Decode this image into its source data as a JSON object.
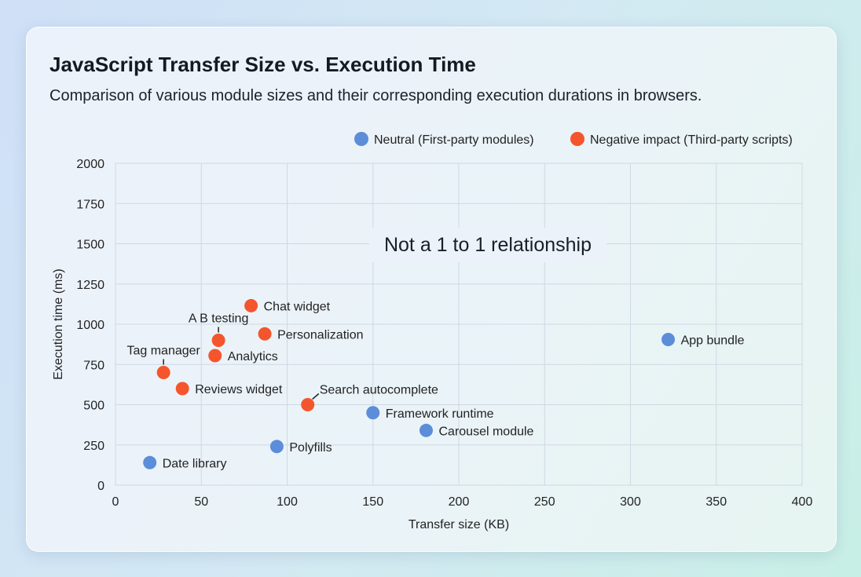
{
  "chart_data": {
    "type": "scatter",
    "title": "JavaScript Transfer Size vs. Execution Time",
    "subtitle": "Comparison of various module sizes and their corresponding execution durations in browsers.",
    "xlabel": "Transfer size (KB)",
    "ylabel": "Execution time (ms)",
    "xlim": [
      0,
      400
    ],
    "ylim": [
      0,
      2000
    ],
    "xticks": [
      0,
      50,
      100,
      150,
      200,
      250,
      300,
      350,
      400
    ],
    "yticks": [
      0,
      250,
      500,
      750,
      1000,
      1250,
      1500,
      1750,
      2000
    ],
    "grid": true,
    "legend_position": "top-right",
    "annotation": "Not a 1 to 1 relationship",
    "series": [
      {
        "name": "Neutral (First-party modules)",
        "color": "#5b8dd9",
        "points": [
          {
            "label": "Date library",
            "x": 20,
            "y": 140
          },
          {
            "label": "Polyfills",
            "x": 94,
            "y": 240
          },
          {
            "label": "Framework runtime",
            "x": 150,
            "y": 450
          },
          {
            "label": "Carousel module",
            "x": 181,
            "y": 340
          },
          {
            "label": "App bundle",
            "x": 322,
            "y": 905
          }
        ]
      },
      {
        "name": "Negative impact (Third-party scripts)",
        "color": "#f4552d",
        "points": [
          {
            "label": "Tag manager",
            "x": 28,
            "y": 700
          },
          {
            "label": "Reviews widget",
            "x": 39,
            "y": 600
          },
          {
            "label": "Analytics",
            "x": 58,
            "y": 805
          },
          {
            "label": "A B testing",
            "x": 60,
            "y": 900
          },
          {
            "label": "Chat widget",
            "x": 79,
            "y": 1115
          },
          {
            "label": "Personalization",
            "x": 87,
            "y": 940
          },
          {
            "label": "Search autocomplete",
            "x": 112,
            "y": 500
          }
        ]
      }
    ]
  }
}
